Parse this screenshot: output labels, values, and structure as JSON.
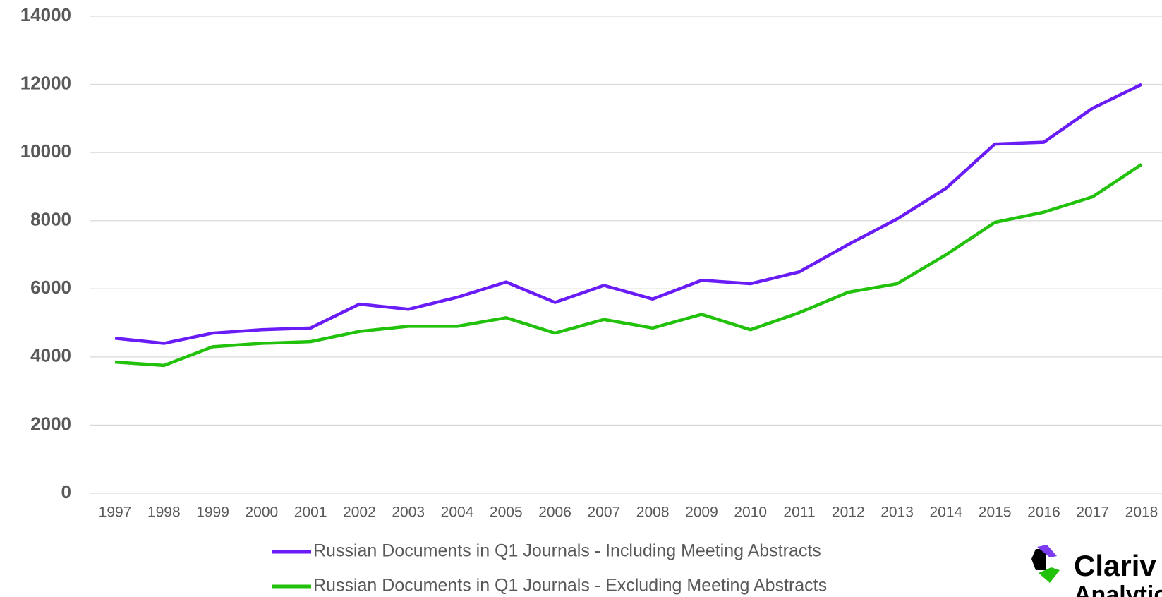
{
  "chart_data": {
    "type": "line",
    "categories": [
      "1997",
      "1998",
      "1999",
      "2000",
      "2001",
      "2002",
      "2003",
      "2004",
      "2005",
      "2006",
      "2007",
      "2008",
      "2009",
      "2010",
      "2011",
      "2012",
      "2013",
      "2014",
      "2015",
      "2016",
      "2017",
      "2018"
    ],
    "series": [
      {
        "name": "Russian Documents in Q1 Journals - Including Meeting Abstracts",
        "color": "#6a1cf6",
        "values": [
          4550,
          4400,
          4700,
          4800,
          4850,
          5550,
          5400,
          5750,
          6200,
          5600,
          6100,
          5700,
          6250,
          6150,
          6500,
          7300,
          8050,
          8950,
          10250,
          10300,
          11300,
          12000
        ]
      },
      {
        "name": "Russian Documents in Q1 Journals - Excluding Meeting Abstracts",
        "color": "#22c10b",
        "values": [
          3850,
          3750,
          4300,
          4400,
          4450,
          4750,
          4900,
          4900,
          5150,
          4700,
          5100,
          4850,
          5250,
          4800,
          5300,
          5900,
          6150,
          7000,
          7950,
          8250,
          8700,
          9650
        ]
      }
    ],
    "ylim": [
      0,
      14000
    ],
    "yticks": [
      0,
      2000,
      4000,
      6000,
      8000,
      10000,
      12000,
      14000
    ],
    "grid": true
  },
  "logo": {
    "line1": "Clariv",
    "line2": "Analytic"
  }
}
